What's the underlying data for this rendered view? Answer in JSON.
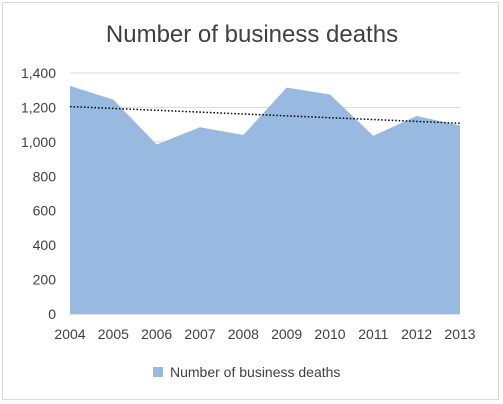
{
  "chart_data": {
    "type": "area",
    "title": "Number of business deaths",
    "categories": [
      "2004",
      "2005",
      "2006",
      "2007",
      "2008",
      "2009",
      "2010",
      "2011",
      "2012",
      "2013"
    ],
    "series": [
      {
        "name": "Number of business deaths",
        "values": [
          1325,
          1245,
          985,
          1085,
          1040,
          1315,
          1275,
          1035,
          1150,
          1095
        ],
        "color": "#98b9e0"
      }
    ],
    "trendline": {
      "type": "linear",
      "style": "dotted",
      "color": "#000000",
      "start_value": 1205,
      "end_value": 1108
    },
    "ylim": [
      0,
      1400
    ],
    "yticks": [
      "0",
      "200",
      "400",
      "600",
      "800",
      "1,000",
      "1,200",
      "1,400"
    ],
    "ytick_values": [
      0,
      200,
      400,
      600,
      800,
      1000,
      1200,
      1400
    ],
    "grid": true,
    "gridline_color": "#d9d9d9",
    "legend_position": "bottom",
    "xlabel": "",
    "ylabel": ""
  }
}
